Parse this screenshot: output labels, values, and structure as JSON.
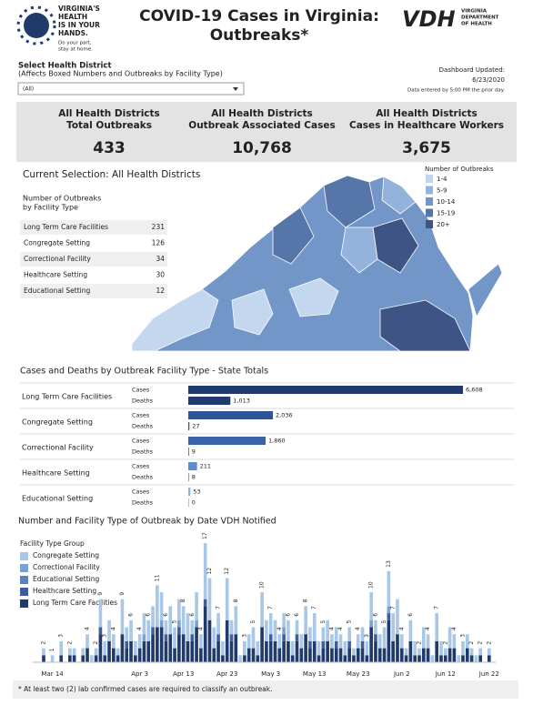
{
  "header": {
    "logo_text": [
      "VIRGINIA'S",
      "HEALTH",
      "IS IN YOUR",
      "HANDS."
    ],
    "logo_sub": [
      "Do your part,",
      "stay at home."
    ],
    "title": [
      "COVID-19 Cases in Virginia:",
      "Outbreaks*"
    ],
    "vdh": "VDH",
    "vdh_sub": [
      "VIRGINIA",
      "DEPARTMENT",
      "OF HEALTH"
    ]
  },
  "filter": {
    "label": "Select Health District",
    "sublabel": "(Affects Boxed Numbers and Outbreaks by Facility Type)",
    "value": "(All)"
  },
  "updated": {
    "label": "Dashboard Updated:",
    "date": "6/23/2020",
    "note": "Data entered by 5:00 PM the prior day."
  },
  "kpis": [
    {
      "label": [
        "All Health Districts",
        "Total Outbreaks"
      ],
      "value": "433"
    },
    {
      "label": [
        "All Health Districts",
        "Outbreak Associated Cases"
      ],
      "value": "10,768"
    },
    {
      "label": [
        "All Health Districts",
        "Cases in Healthcare Workers"
      ],
      "value": "3,675"
    }
  ],
  "selection": "Current Selection: All Health Districts",
  "facility_table": {
    "title": [
      "Number of Outbreaks",
      "by Facility Type"
    ],
    "rows": [
      [
        "Long Term Care Facilities",
        231
      ],
      [
        "Congregate Setting",
        126
      ],
      [
        "Correctional Facility",
        34
      ],
      [
        "Healthcare Setting",
        30
      ],
      [
        "Educational Setting",
        12
      ]
    ]
  },
  "map_legend": {
    "title": "Number of Outbreaks",
    "items": [
      {
        "label": "1-4",
        "color": "#c3d7ee"
      },
      {
        "label": "5-9",
        "color": "#93b3dc"
      },
      {
        "label": "10-14",
        "color": "#7396c8"
      },
      {
        "label": "15-19",
        "color": "#5675a8"
      },
      {
        "label": "20+",
        "color": "#3d5485"
      }
    ]
  },
  "chart_data": [
    {
      "type": "bar",
      "orientation": "horizontal",
      "title": "Cases and Deaths by Outbreak Facility Type - State Totals",
      "categories": [
        "Long Term Care Facilities",
        "Congregate Setting",
        "Correctional Facility",
        "Healthcare Setting",
        "Educational Setting"
      ],
      "colors": [
        "#1f3a6b",
        "#2f5597",
        "#3a63a8",
        "#5f8ccc",
        "#8fb4e0"
      ],
      "series": [
        {
          "name": "Cases",
          "values": [
            6608,
            2036,
            1860,
            211,
            53
          ],
          "value_labels": [
            "6,608",
            "2,036",
            "1,860",
            "211",
            "53"
          ]
        },
        {
          "name": "Deaths",
          "values": [
            1013,
            27,
            9,
            8,
            0
          ],
          "value_labels": [
            "1,013",
            "27",
            "9",
            "8",
            "0"
          ]
        }
      ],
      "xlim": [
        0,
        6608
      ]
    },
    {
      "type": "stacked_bar",
      "title": "Number and Facility Type of Outbreak by Date VDH Notified",
      "legend_title": "Facility Type Group",
      "categories": [
        null,
        null,
        null,
        null,
        "Mar 14",
        null,
        null,
        null,
        null,
        null,
        null,
        null,
        null,
        null,
        null,
        null,
        null,
        null,
        null,
        null,
        null,
        null,
        null,
        null,
        "Apr 3",
        null,
        null,
        null,
        null,
        null,
        null,
        null,
        null,
        null,
        "Apr 13",
        null,
        null,
        null,
        null,
        null,
        null,
        null,
        null,
        null,
        "Apr 23",
        null,
        null,
        null,
        null,
        null,
        null,
        null,
        null,
        null,
        "May 3",
        null,
        null,
        null,
        null,
        null,
        null,
        null,
        null,
        null,
        "May 13",
        null,
        null,
        null,
        null,
        null,
        null,
        null,
        null,
        null,
        "May 23",
        null,
        null,
        null,
        null,
        null,
        null,
        null,
        null,
        null,
        "Jun 2",
        null,
        null,
        null,
        null,
        null,
        null,
        null,
        null,
        null,
        "Jun 12",
        null,
        null,
        null,
        null,
        null,
        null,
        null,
        null,
        null,
        "Jun 22",
        null
      ],
      "series": [
        {
          "name": "Congregate Setting",
          "color": "#a9c8e8",
          "values": [
            0,
            0,
            1,
            0,
            1,
            0,
            2,
            0,
            1,
            1,
            0,
            1,
            2,
            1,
            1,
            4,
            2,
            3,
            2,
            1,
            5,
            2,
            3,
            2,
            2,
            3,
            3,
            3,
            6,
            4,
            2,
            4,
            3,
            3,
            4,
            4,
            2,
            4,
            2,
            8,
            6,
            3,
            3,
            2,
            6,
            2,
            4,
            1,
            2,
            2,
            3,
            2,
            5,
            3,
            3,
            3,
            2,
            2,
            3,
            2,
            2,
            2,
            4,
            2,
            4,
            2,
            2,
            3,
            2,
            2,
            2,
            2,
            2,
            1,
            2,
            2,
            2,
            4,
            2,
            2,
            3,
            5,
            4,
            5,
            2,
            1,
            3,
            2,
            1,
            3,
            2,
            1,
            4,
            2,
            1,
            3,
            2,
            1,
            2,
            2,
            1,
            1,
            1,
            0,
            1,
            0
          ]
        },
        {
          "name": "Correctional Facility",
          "color": "#7aa1d2",
          "values": [
            0,
            0,
            0,
            0,
            0,
            0,
            0,
            0,
            0,
            0,
            0,
            0,
            0,
            0,
            0,
            0,
            0,
            0,
            0,
            0,
            0,
            0,
            0,
            0,
            0,
            1,
            0,
            0,
            0,
            1,
            0,
            0,
            0,
            1,
            0,
            0,
            0,
            1,
            0,
            0,
            0,
            0,
            0,
            0,
            0,
            0,
            0,
            0,
            0,
            0,
            0,
            0,
            0,
            0,
            0,
            0,
            0,
            1,
            0,
            0,
            0,
            0,
            0,
            0,
            0,
            0,
            0,
            0,
            0,
            0,
            0,
            0,
            0,
            0,
            0,
            0,
            0,
            1,
            0,
            0,
            0,
            1,
            0,
            0,
            0,
            0,
            0,
            0,
            0,
            0,
            0,
            0,
            0,
            0,
            0,
            0,
            0,
            0,
            0,
            0,
            0,
            0,
            0,
            0,
            0,
            0
          ]
        },
        {
          "name": "Educational Setting",
          "color": "#5b82bd",
          "values": [
            0,
            0,
            0,
            0,
            0,
            0,
            0,
            0,
            0,
            0,
            0,
            0,
            0,
            0,
            0,
            0,
            0,
            0,
            0,
            0,
            0,
            0,
            0,
            0,
            0,
            0,
            0,
            0,
            0,
            0,
            0,
            0,
            0,
            0,
            0,
            0,
            0,
            0,
            0,
            0,
            0,
            0,
            0,
            0,
            0,
            0,
            0,
            0,
            0,
            0,
            0,
            0,
            0,
            0,
            0,
            0,
            0,
            0,
            0,
            0,
            0,
            0,
            0,
            0,
            0,
            0,
            0,
            0,
            0,
            0,
            0,
            0,
            0,
            0,
            0,
            0,
            0,
            0,
            0,
            0,
            0,
            0,
            0,
            0,
            0,
            0,
            0,
            0,
            0,
            0,
            0,
            0,
            0,
            0,
            0,
            0,
            0,
            0,
            0,
            0,
            0,
            0,
            0,
            0,
            0,
            0
          ]
        },
        {
          "name": "Healthcare Setting",
          "color": "#3e5f9c",
          "values": [
            0,
            0,
            0,
            0,
            0,
            0,
            0,
            0,
            0,
            0,
            0,
            0,
            0,
            0,
            0,
            1,
            0,
            0,
            0,
            0,
            0,
            1,
            0,
            0,
            0,
            0,
            0,
            1,
            0,
            0,
            1,
            0,
            0,
            1,
            0,
            0,
            1,
            0,
            0,
            1,
            0,
            0,
            1,
            0,
            0,
            1,
            0,
            0,
            0,
            0,
            0,
            0,
            0,
            0,
            1,
            0,
            0,
            1,
            0,
            0,
            1,
            0,
            0,
            1,
            0,
            0,
            1,
            0,
            0,
            1,
            0,
            0,
            1,
            0,
            0,
            1,
            0,
            0,
            1,
            0,
            0,
            1,
            0,
            0,
            0,
            0,
            0,
            0,
            0,
            0,
            0,
            0,
            0,
            0,
            0,
            0,
            0,
            0,
            0,
            0,
            0,
            0,
            0,
            0,
            0,
            0
          ]
        },
        {
          "name": "Long Term Care Facilities",
          "color": "#1f3a6b",
          "values": [
            0,
            0,
            1,
            0,
            0,
            0,
            1,
            0,
            1,
            1,
            0,
            1,
            2,
            0,
            1,
            4,
            1,
            3,
            2,
            1,
            4,
            2,
            3,
            1,
            2,
            3,
            3,
            4,
            5,
            5,
            3,
            4,
            2,
            4,
            4,
            3,
            3,
            5,
            2,
            8,
            6,
            2,
            3,
            1,
            6,
            3,
            4,
            0,
            1,
            2,
            2,
            1,
            5,
            3,
            3,
            3,
            2,
            3,
            3,
            1,
            3,
            2,
            4,
            2,
            3,
            1,
            2,
            3,
            2,
            2,
            2,
            1,
            2,
            1,
            2,
            2,
            1,
            5,
            3,
            2,
            2,
            6,
            3,
            4,
            2,
            1,
            3,
            1,
            1,
            2,
            2,
            0,
            3,
            1,
            1,
            2,
            2,
            0,
            1,
            2,
            1,
            0,
            1,
            0,
            1,
            0
          ]
        }
      ],
      "total_labels": [
        null,
        null,
        2,
        null,
        1,
        null,
        3,
        null,
        2,
        null,
        null,
        null,
        4,
        null,
        2,
        9,
        3,
        null,
        4,
        null,
        9,
        null,
        6,
        null,
        4,
        null,
        6,
        null,
        11,
        null,
        6,
        null,
        5,
        null,
        8,
        null,
        6,
        null,
        4,
        17,
        12,
        null,
        7,
        null,
        12,
        null,
        8,
        null,
        3,
        null,
        5,
        null,
        10,
        null,
        7,
        null,
        4,
        null,
        6,
        null,
        6,
        null,
        8,
        null,
        7,
        null,
        5,
        null,
        4,
        null,
        4,
        null,
        5,
        null,
        4,
        null,
        3,
        10,
        6,
        null,
        5,
        13,
        7,
        null,
        4,
        null,
        6,
        null,
        2,
        null,
        4,
        null,
        7,
        null,
        2,
        null,
        4,
        null,
        3,
        null,
        2,
        null,
        2,
        null,
        2,
        null
      ],
      "ylim": [
        0,
        17
      ]
    }
  ],
  "footnote": "* At least two (2) lab confirmed cases are required to classify an outbreak."
}
